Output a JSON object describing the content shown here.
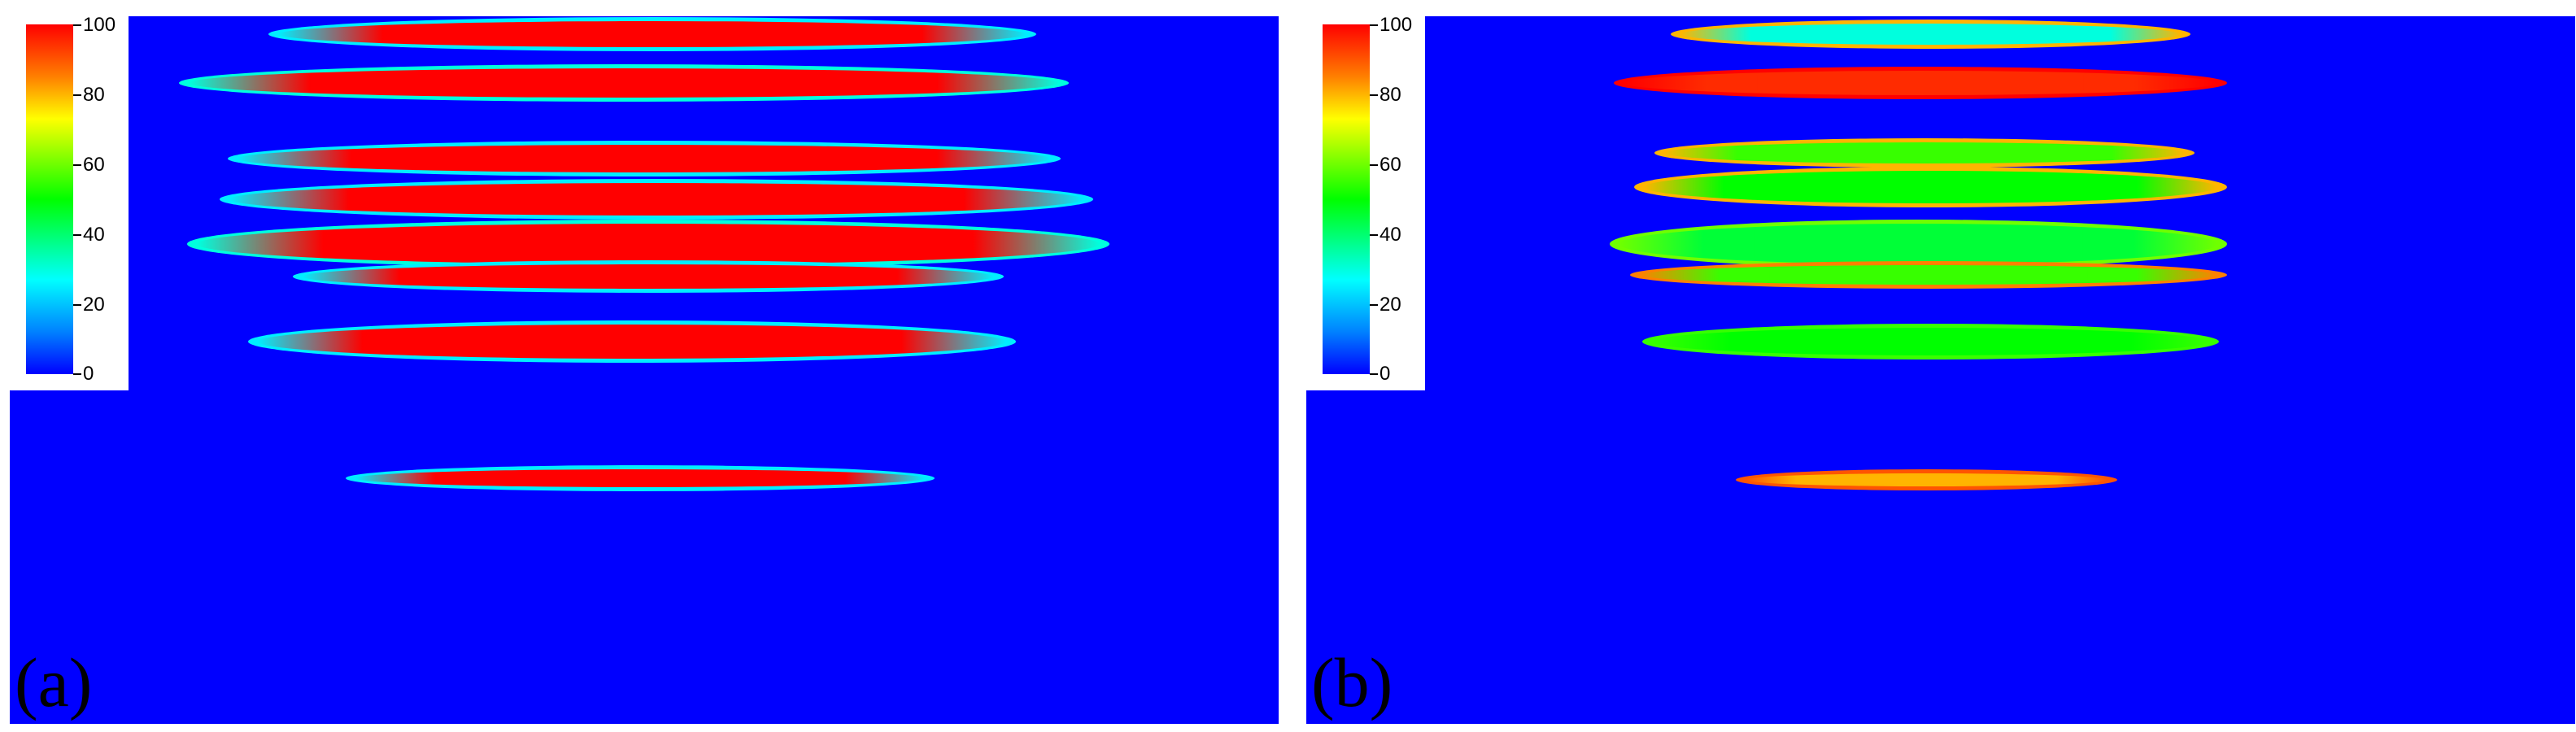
{
  "figure": {
    "panels": [
      {
        "id": "a",
        "label": "(a)"
      },
      {
        "id": "b",
        "label": "(b)"
      }
    ]
  },
  "colorbar": {
    "ticks": [
      "100",
      "80",
      "60",
      "40",
      "20",
      "0"
    ],
    "colors": [
      "#ff0000",
      "#ff8000",
      "#ffff00",
      "#00ff00",
      "#00ffff",
      "#0080ff",
      "#0000ff"
    ]
  },
  "chart_data": [
    {
      "type": "heatmap",
      "panel": "(a)",
      "colorbar_range": [
        0,
        100
      ],
      "background_value": 0,
      "background_color": "#0000ff",
      "layers": [
        {
          "depth_rank": 1,
          "core_value": 100,
          "edge_value": 25
        },
        {
          "depth_rank": 2,
          "core_value": 100,
          "edge_value": 30
        },
        {
          "depth_rank": 3,
          "core_value": 100,
          "edge_value": 25
        },
        {
          "depth_rank": 4,
          "core_value": 100,
          "edge_value": 25
        },
        {
          "depth_rank": 5,
          "core_value": 100,
          "edge_value": 30
        },
        {
          "depth_rank": 6,
          "core_value": 100,
          "edge_value": 25
        },
        {
          "depth_rank": 7,
          "core_value": 100,
          "edge_value": 25
        },
        {
          "depth_rank": 8,
          "core_value": 100,
          "edge_value": 25
        }
      ]
    },
    {
      "type": "heatmap",
      "panel": "(b)",
      "colorbar_range": [
        0,
        100
      ],
      "background_value": 0,
      "background_color": "#0000ff",
      "layers": [
        {
          "depth_rank": 1,
          "core_value": 30,
          "edge_value": 80
        },
        {
          "depth_rank": 2,
          "core_value": 95,
          "edge_value": 100
        },
        {
          "depth_rank": 3,
          "core_value": 55,
          "edge_value": 80
        },
        {
          "depth_rank": 4,
          "core_value": 50,
          "edge_value": 80
        },
        {
          "depth_rank": 5,
          "core_value": 45,
          "edge_value": 60
        },
        {
          "depth_rank": 6,
          "core_value": 55,
          "edge_value": 85
        },
        {
          "depth_rank": 7,
          "core_value": 50,
          "edge_value": 55
        },
        {
          "depth_rank": 8,
          "core_value": 80,
          "edge_value": 90
        }
      ]
    }
  ]
}
